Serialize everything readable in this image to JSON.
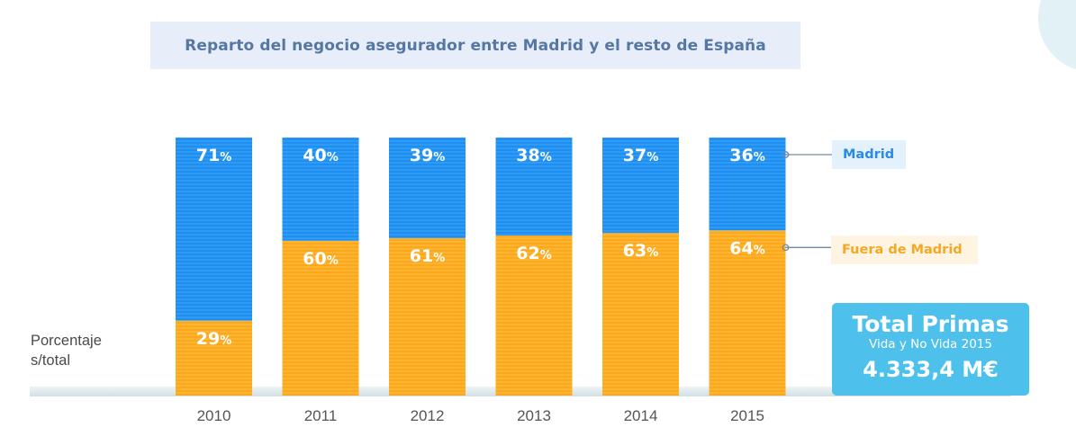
{
  "chart_data": {
    "type": "bar",
    "stacked": true,
    "title": "Reparto del negocio asegurador entre Madrid y el resto de España",
    "xlabel": "",
    "ylabel": "Porcentaje s/total",
    "categories": [
      "2010",
      "2011",
      "2012",
      "2013",
      "2014",
      "2015"
    ],
    "ylim": [
      0,
      100
    ],
    "grid": false,
    "value_suffix": "%",
    "series": [
      {
        "name": "Fuera de Madrid",
        "color": "#fbaa1f",
        "values": [
          29,
          60,
          61,
          62,
          63,
          64
        ]
      },
      {
        "name": "Madrid",
        "color": "#1e8ff0",
        "values": [
          71,
          40,
          39,
          38,
          37,
          36
        ]
      }
    ],
    "legend": [
      {
        "label": "Madrid",
        "color": "#2a8ae8",
        "placement": "right"
      },
      {
        "label": "Fuera de Madrid",
        "color": "#f6a823",
        "placement": "right"
      }
    ]
  },
  "ylabel_lines": [
    "Porcentaje",
    "s/total"
  ],
  "total_box": {
    "title": "Total Primas",
    "subtitle": "Vida y No Vida 2015",
    "value": "4.333,4 M€",
    "color": "#4dc1ec"
  }
}
